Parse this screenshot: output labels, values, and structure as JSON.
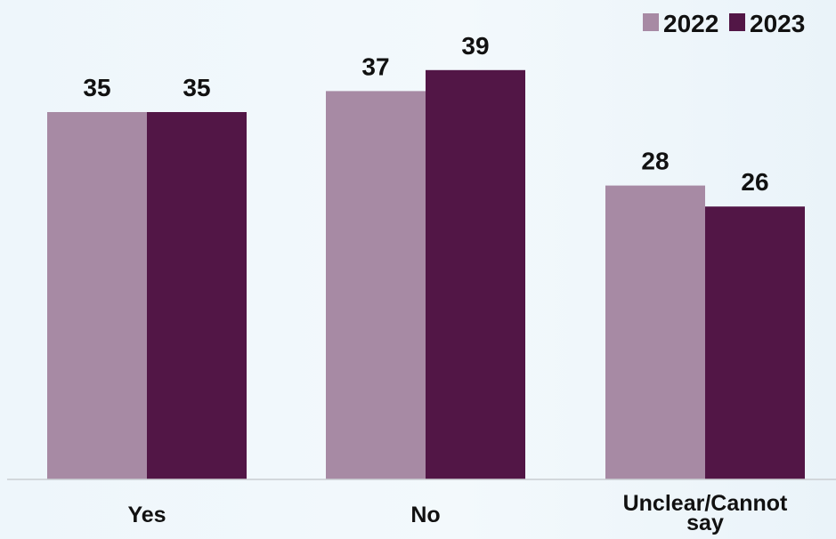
{
  "chart_data": {
    "type": "bar",
    "categories": [
      "Yes",
      "No",
      "Unclear/Cannot say"
    ],
    "category_lines": [
      [
        "Yes"
      ],
      [
        "No"
      ],
      [
        "Unclear/Cannot",
        "say"
      ]
    ],
    "series": [
      {
        "name": "2022",
        "values": [
          35,
          37,
          28
        ],
        "color": "#a78aa4"
      },
      {
        "name": "2023",
        "values": [
          35,
          39,
          26
        ],
        "color": "#521646"
      }
    ],
    "title": "",
    "xlabel": "",
    "ylabel": "",
    "ylim": [
      0,
      48
    ],
    "grid": false,
    "legend": "top-right",
    "data_labels": true
  }
}
